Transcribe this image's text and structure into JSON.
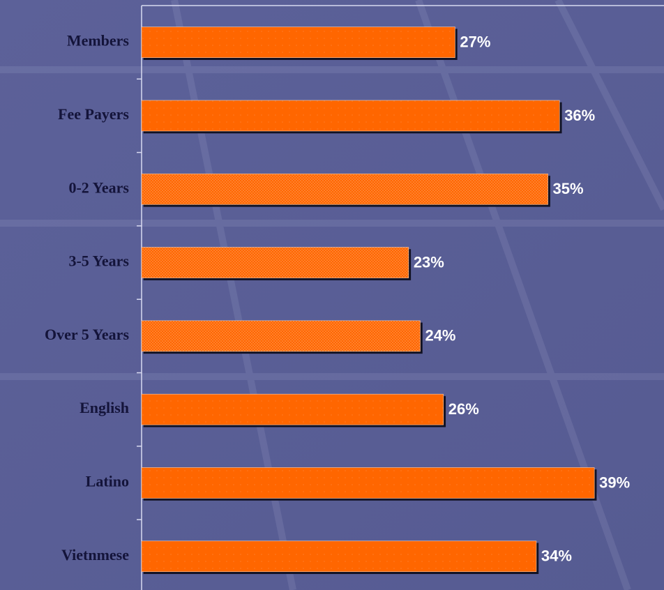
{
  "chart_data": {
    "type": "hbar",
    "categories": [
      "Members",
      "Fee Payers",
      "0-2 Years",
      "3-5 Years",
      "Over 5 Years",
      "English",
      "Latino",
      "Vietnmese"
    ],
    "values": [
      27,
      36,
      35,
      23,
      24,
      26,
      39,
      34
    ],
    "value_labels": [
      "27%",
      "36%",
      "35%",
      "23%",
      "24%",
      "26%",
      "39%",
      "34%"
    ],
    "pattern": [
      "plain",
      "plain",
      "dotted",
      "dotted",
      "dotted",
      "plain",
      "plain",
      "plain"
    ],
    "color": "#ff6600",
    "xlim": [
      0,
      45
    ]
  }
}
